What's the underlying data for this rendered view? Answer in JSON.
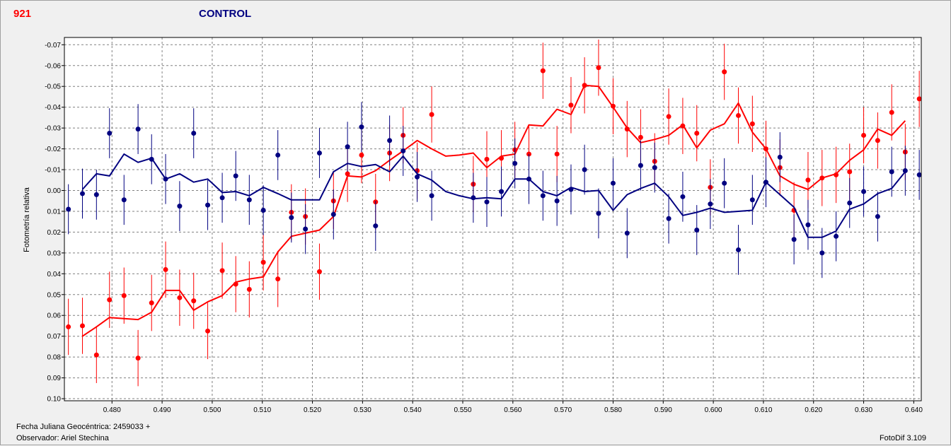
{
  "header": {
    "star_id": "921",
    "title": "CONTROL"
  },
  "footer": {
    "date_line": "Fecha Juliana Geocéntrica: 2459033 +",
    "observer_line": "Observador: Ariel Stechina",
    "software": "FotoDif 3.109"
  },
  "colors": {
    "red_series": "#ff0000",
    "blue_series": "#000080",
    "background": "#f0f0f0",
    "grid": "#808080"
  },
  "chart_data": {
    "type": "scatter",
    "ylabel": "Fotometría relativa",
    "xlim": [
      0.4705,
      0.6415
    ],
    "ylim": [
      0.101,
      -0.0735
    ],
    "y_inverted": true,
    "x_ticks": [
      0.48,
      0.49,
      0.5,
      0.51,
      0.52,
      0.53,
      0.54,
      0.55,
      0.56,
      0.57,
      0.58,
      0.59,
      0.6,
      0.61,
      0.62,
      0.63,
      0.64
    ],
    "x_tick_labels": [
      "0.480",
      "0.490",
      "0.500",
      "0.510",
      "0.520",
      "0.530",
      "0.540",
      "0.550",
      "0.560",
      "0.570",
      "0.580",
      "0.590",
      "0.600",
      "0.610",
      "0.620",
      "0.630",
      "0.640"
    ],
    "y_ticks": [
      -0.07,
      -0.06,
      -0.05,
      -0.04,
      -0.03,
      -0.02,
      -0.01,
      0.0,
      0.01,
      0.02,
      0.03,
      0.04,
      0.05,
      0.06,
      0.07,
      0.08,
      0.09,
      0.1
    ],
    "y_tick_labels": [
      "-0.07",
      "-0.06",
      "-0.05",
      "-0.04",
      "-0.03",
      "-0.02",
      "-0.01",
      "0.00",
      "0.01",
      "0.02",
      "0.03",
      "0.04",
      "0.05",
      "0.06",
      "0.07",
      "0.08",
      "0.09",
      "0.10"
    ],
    "grid": true,
    "series": [
      {
        "color": "#ff0000",
        "error": 0.0135,
        "points": [
          [
            0.4713,
            0.0655
          ],
          [
            0.4741,
            0.065
          ],
          [
            0.4769,
            0.079
          ],
          [
            0.4795,
            0.0525
          ],
          [
            0.4824,
            0.0505
          ],
          [
            0.4852,
            0.0805
          ],
          [
            0.4879,
            0.054
          ],
          [
            0.4907,
            0.038
          ],
          [
            0.4935,
            0.0515
          ],
          [
            0.4963,
            0.053
          ],
          [
            0.4991,
            0.0675
          ],
          [
            0.502,
            0.0385
          ],
          [
            0.5047,
            0.045
          ],
          [
            0.5074,
            0.0475
          ],
          [
            0.5102,
            0.0345
          ],
          [
            0.5131,
            0.0425
          ],
          [
            0.5158,
            0.0105
          ],
          [
            0.5186,
            0.0125
          ],
          [
            0.5214,
            0.039
          ],
          [
            0.5242,
            0.005
          ],
          [
            0.527,
            -0.008
          ],
          [
            0.5298,
            -0.017
          ],
          [
            0.5326,
            0.0055
          ],
          [
            0.5354,
            -0.018
          ],
          [
            0.5381,
            -0.0265
          ],
          [
            0.5409,
            -0.0095
          ],
          [
            0.5438,
            -0.0365
          ],
          [
            0.5521,
            -0.003
          ],
          [
            0.5548,
            -0.015
          ],
          [
            0.5577,
            -0.0155
          ],
          [
            0.5604,
            -0.0195
          ],
          [
            0.5632,
            -0.0175
          ],
          [
            0.566,
            -0.0575
          ],
          [
            0.5688,
            -0.0175
          ],
          [
            0.5716,
            -0.041
          ],
          [
            0.5743,
            -0.0505
          ],
          [
            0.5771,
            -0.059
          ],
          [
            0.58,
            -0.0405
          ],
          [
            0.5828,
            -0.0295
          ],
          [
            0.5855,
            -0.0255
          ],
          [
            0.5883,
            -0.014
          ],
          [
            0.5911,
            -0.0355
          ],
          [
            0.5939,
            -0.031
          ],
          [
            0.5967,
            -0.0275
          ],
          [
            0.5994,
            -0.0015
          ],
          [
            0.6022,
            -0.057
          ],
          [
            0.605,
            -0.036
          ],
          [
            0.6078,
            -0.032
          ],
          [
            0.6105,
            -0.02
          ],
          [
            0.6133,
            -0.011
          ],
          [
            0.6161,
            0.0095
          ],
          [
            0.6189,
            -0.005
          ],
          [
            0.6217,
            -0.006
          ],
          [
            0.6245,
            -0.0075
          ],
          [
            0.6272,
            -0.009
          ],
          [
            0.63,
            -0.0265
          ],
          [
            0.6328,
            -0.024
          ],
          [
            0.6356,
            -0.0375
          ],
          [
            0.6383,
            -0.0185
          ],
          [
            0.6411,
            -0.044
          ]
        ],
        "line": [
          [
            0.4741,
            0.07
          ],
          [
            0.4769,
            0.0655
          ],
          [
            0.4795,
            0.061
          ],
          [
            0.4824,
            0.0615
          ],
          [
            0.4852,
            0.062
          ],
          [
            0.4879,
            0.0585
          ],
          [
            0.4907,
            0.048
          ],
          [
            0.4935,
            0.048
          ],
          [
            0.4963,
            0.0575
          ],
          [
            0.4991,
            0.0535
          ],
          [
            0.502,
            0.0505
          ],
          [
            0.5047,
            0.044
          ],
          [
            0.5074,
            0.0425
          ],
          [
            0.5102,
            0.0415
          ],
          [
            0.5131,
            0.0295
          ],
          [
            0.5158,
            0.022
          ],
          [
            0.5186,
            0.0205
          ],
          [
            0.5214,
            0.019
          ],
          [
            0.5242,
            0.0125
          ],
          [
            0.527,
            -0.007
          ],
          [
            0.5298,
            -0.0065
          ],
          [
            0.5326,
            -0.0095
          ],
          [
            0.5354,
            -0.0145
          ],
          [
            0.5381,
            -0.019
          ],
          [
            0.5409,
            -0.024
          ],
          [
            0.5438,
            -0.02
          ],
          [
            0.5466,
            -0.0165
          ],
          [
            0.5493,
            -0.017
          ],
          [
            0.5521,
            -0.018
          ],
          [
            0.5548,
            -0.011
          ],
          [
            0.5577,
            -0.0165
          ],
          [
            0.5604,
            -0.0175
          ],
          [
            0.5632,
            -0.0315
          ],
          [
            0.566,
            -0.031
          ],
          [
            0.5688,
            -0.039
          ],
          [
            0.5716,
            -0.0365
          ],
          [
            0.5743,
            -0.0505
          ],
          [
            0.5771,
            -0.05
          ],
          [
            0.58,
            -0.04
          ],
          [
            0.5828,
            -0.03
          ],
          [
            0.5855,
            -0.023
          ],
          [
            0.5883,
            -0.0245
          ],
          [
            0.5911,
            -0.0265
          ],
          [
            0.5939,
            -0.0315
          ],
          [
            0.5967,
            -0.0205
          ],
          [
            0.5994,
            -0.029
          ],
          [
            0.6022,
            -0.032
          ],
          [
            0.605,
            -0.042
          ],
          [
            0.6078,
            -0.028
          ],
          [
            0.6105,
            -0.02
          ],
          [
            0.6133,
            -0.007
          ],
          [
            0.6161,
            -0.003
          ],
          [
            0.6189,
            -0.0005
          ],
          [
            0.6217,
            -0.006
          ],
          [
            0.6245,
            -0.008
          ],
          [
            0.6272,
            -0.0145
          ],
          [
            0.63,
            -0.0195
          ],
          [
            0.6328,
            -0.0295
          ],
          [
            0.6356,
            -0.0265
          ],
          [
            0.6383,
            -0.0335
          ]
        ]
      },
      {
        "color": "#000080",
        "error": 0.012,
        "points": [
          [
            0.4713,
            0.009
          ],
          [
            0.4741,
            0.0015
          ],
          [
            0.4769,
            0.002
          ],
          [
            0.4795,
            -0.0275
          ],
          [
            0.4824,
            0.0045
          ],
          [
            0.4852,
            -0.0295
          ],
          [
            0.4879,
            -0.015
          ],
          [
            0.4907,
            -0.0055
          ],
          [
            0.4935,
            0.0075
          ],
          [
            0.4963,
            -0.0275
          ],
          [
            0.4991,
            0.007
          ],
          [
            0.502,
            0.0035
          ],
          [
            0.5047,
            -0.007
          ],
          [
            0.5074,
            0.0045
          ],
          [
            0.5102,
            0.0095
          ],
          [
            0.5131,
            -0.017
          ],
          [
            0.5158,
            0.013
          ],
          [
            0.5186,
            0.0185
          ],
          [
            0.5214,
            -0.018
          ],
          [
            0.5242,
            0.0115
          ],
          [
            0.527,
            -0.021
          ],
          [
            0.5298,
            -0.0305
          ],
          [
            0.5326,
            0.017
          ],
          [
            0.5354,
            -0.024
          ],
          [
            0.5381,
            -0.019
          ],
          [
            0.5409,
            -0.0065
          ],
          [
            0.5438,
            0.0025
          ],
          [
            0.5521,
            0.0035
          ],
          [
            0.5548,
            0.0055
          ],
          [
            0.5577,
            0.0005
          ],
          [
            0.5604,
            -0.013
          ],
          [
            0.5632,
            -0.0055
          ],
          [
            0.566,
            0.0025
          ],
          [
            0.5688,
            0.005
          ],
          [
            0.5716,
            -0.0005
          ],
          [
            0.5743,
            -0.01
          ],
          [
            0.5771,
            0.011
          ],
          [
            0.58,
            -0.0035
          ],
          [
            0.5828,
            0.0205
          ],
          [
            0.5855,
            -0.012
          ],
          [
            0.5883,
            -0.011
          ],
          [
            0.5911,
            0.0135
          ],
          [
            0.5939,
            0.003
          ],
          [
            0.5967,
            0.019
          ],
          [
            0.5994,
            0.0065
          ],
          [
            0.6022,
            -0.0035
          ],
          [
            0.605,
            0.0285
          ],
          [
            0.6078,
            0.0045
          ],
          [
            0.6105,
            -0.004
          ],
          [
            0.6133,
            -0.016
          ],
          [
            0.6161,
            0.0235
          ],
          [
            0.6189,
            0.0165
          ],
          [
            0.6217,
            0.03
          ],
          [
            0.6245,
            0.022
          ],
          [
            0.6272,
            0.006
          ],
          [
            0.63,
            0.0005
          ],
          [
            0.6328,
            0.0125
          ],
          [
            0.6356,
            -0.009
          ],
          [
            0.6383,
            -0.0095
          ],
          [
            0.6411,
            -0.0075
          ]
        ],
        "line": [
          [
            0.4741,
            -0.0005
          ],
          [
            0.4769,
            -0.008
          ],
          [
            0.4795,
            -0.007
          ],
          [
            0.4824,
            -0.0175
          ],
          [
            0.4852,
            -0.0135
          ],
          [
            0.4879,
            -0.0155
          ],
          [
            0.4907,
            -0.0055
          ],
          [
            0.4935,
            -0.008
          ],
          [
            0.4963,
            -0.004
          ],
          [
            0.4991,
            -0.0055
          ],
          [
            0.502,
            0.001
          ],
          [
            0.5047,
            0.0005
          ],
          [
            0.5074,
            0.0025
          ],
          [
            0.5102,
            -0.0015
          ],
          [
            0.5131,
            0.0015
          ],
          [
            0.5158,
            0.0045
          ],
          [
            0.5186,
            0.0045
          ],
          [
            0.5214,
            0.0045
          ],
          [
            0.5242,
            -0.009
          ],
          [
            0.527,
            -0.013
          ],
          [
            0.5298,
            -0.0115
          ],
          [
            0.5326,
            -0.0125
          ],
          [
            0.5354,
            -0.009
          ],
          [
            0.5381,
            -0.0165
          ],
          [
            0.5409,
            -0.008
          ],
          [
            0.5438,
            -0.005
          ],
          [
            0.5466,
            0.0005
          ],
          [
            0.5493,
            0.0025
          ],
          [
            0.5521,
            0.004
          ],
          [
            0.5548,
            0.0035
          ],
          [
            0.5577,
            0.004
          ],
          [
            0.5604,
            -0.0055
          ],
          [
            0.5632,
            -0.0055
          ],
          [
            0.566,
            0.0005
          ],
          [
            0.5688,
            0.0025
          ],
          [
            0.5716,
            -0.0015
          ],
          [
            0.5743,
            0.0005
          ],
          [
            0.5771,
            0.0
          ],
          [
            0.58,
            0.0095
          ],
          [
            0.5828,
            0.002
          ],
          [
            0.5855,
            -0.001
          ],
          [
            0.5883,
            -0.0035
          ],
          [
            0.5911,
            0.003
          ],
          [
            0.5939,
            0.012
          ],
          [
            0.5967,
            0.0105
          ],
          [
            0.5994,
            0.0085
          ],
          [
            0.6022,
            0.0105
          ],
          [
            0.605,
            0.01
          ],
          [
            0.6078,
            0.0095
          ],
          [
            0.6105,
            -0.004
          ],
          [
            0.6133,
            0.002
          ],
          [
            0.6161,
            0.008
          ],
          [
            0.6189,
            0.0225
          ],
          [
            0.6217,
            0.0225
          ],
          [
            0.6245,
            0.0195
          ],
          [
            0.6272,
            0.009
          ],
          [
            0.63,
            0.0065
          ],
          [
            0.6328,
            0.0015
          ],
          [
            0.6356,
            -0.001
          ],
          [
            0.6383,
            -0.009
          ]
        ]
      }
    ]
  }
}
